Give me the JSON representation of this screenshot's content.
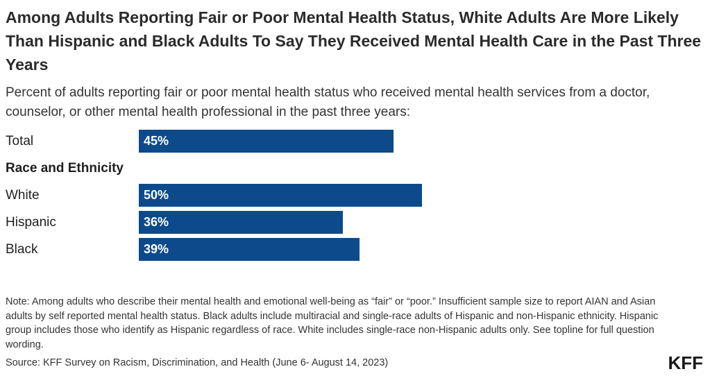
{
  "chart_data": {
    "type": "bar",
    "orientation": "horizontal",
    "title": "Among Adults Reporting Fair or Poor Mental Health Status, White Adults Are More Likely Than Hispanic and Black Adults To Say They Received Mental Health Care in the Past Three Years",
    "subtitle": "Percent of adults reporting fair or poor mental health status who received mental health services from a doctor, counselor, or other mental health professional in the past three years:",
    "group_label": "Race and Ethnicity",
    "categories": [
      "Total",
      "White",
      "Hispanic",
      "Black"
    ],
    "values": [
      45,
      50,
      36,
      39
    ],
    "value_labels": [
      "45%",
      "50%",
      "36%",
      "39%"
    ],
    "xlim": [
      0,
      100
    ],
    "bar_color": "#0c4a8c",
    "grid": false
  },
  "note": "Note: Among adults who describe their mental health and emotional well-being as “fair” or “poor.” Insufficient sample size to report AIAN and Asian adults by self reported mental health status. Black adults include multiracial and single-race adults of Hispanic and non-Hispanic ethnicity. Hispanic group includes those who identify as Hispanic regardless of race. White includes single-race non-Hispanic adults only. See topline for full question wording.",
  "source": "Source: KFF Survey on Racism, Discrimination, and Health (June 6- August 14, 2023)",
  "logo_text": "KFF"
}
